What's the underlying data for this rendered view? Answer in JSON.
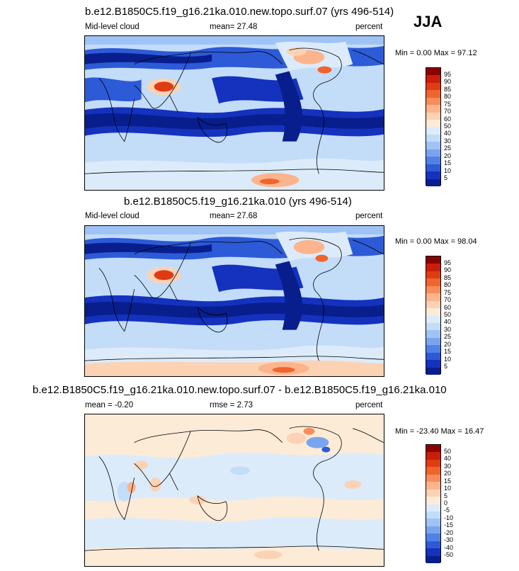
{
  "season": "JJA",
  "panels": [
    {
      "title": "b.e12.B1850C5.f19_g16.21ka.010.new.topo.surf.07 (yrs 496-514)",
      "left": "Mid-level cloud",
      "mean": "mean=  27.48",
      "right": "percent",
      "minmax": "Min =   0.00 Max =  97.12"
    },
    {
      "title": "b.e12.B1850C5.f19_g16.21ka.010 (yrs 496-514)",
      "left": "Mid-level cloud",
      "mean": "mean=  27.68",
      "right": "percent",
      "minmax": "Min =   0.00 Max =  98.04"
    },
    {
      "title": "b.e12.B1850C5.f19_g16.21ka.010.new.topo.surf.07 - b.e12.B1850C5.f19_g16.21ka.010",
      "left": "mean =  -0.20",
      "mean": "rmse =   2.73",
      "right": "percent",
      "minmax": "Min = -23.40 Max =  16.47"
    }
  ],
  "colorbar_abs": {
    "labels": [
      "95",
      "90",
      "85",
      "80",
      "75",
      "70",
      "60",
      "50",
      "40",
      "30",
      "25",
      "20",
      "15",
      "10",
      "5"
    ],
    "colors": [
      "#8c0000",
      "#c81e0a",
      "#e03c14",
      "#f0642d",
      "#f88c5a",
      "#fcb48c",
      "#fcd2b4",
      "#fcebd7",
      "#dcebfa",
      "#c3dcf8",
      "#a0c3f5",
      "#7aa5ee",
      "#5082e6",
      "#2d5ad7",
      "#1432be",
      "#081e8c"
    ]
  },
  "colorbar_diff": {
    "labels": [
      "50",
      "40",
      "30",
      "20",
      "15",
      "10",
      "5",
      "0",
      "-5",
      "-10",
      "-15",
      "-20",
      "-30",
      "-40",
      "-50"
    ],
    "colors": [
      "#8c0000",
      "#c81e0a",
      "#e03c14",
      "#f0642d",
      "#f88c5a",
      "#fcb48c",
      "#fcd2b4",
      "#fcebd7",
      "#dcebfa",
      "#c3dcf8",
      "#a0c3f5",
      "#7aa5ee",
      "#5082e6",
      "#2d5ad7",
      "#1432be",
      "#081e8c"
    ]
  }
}
